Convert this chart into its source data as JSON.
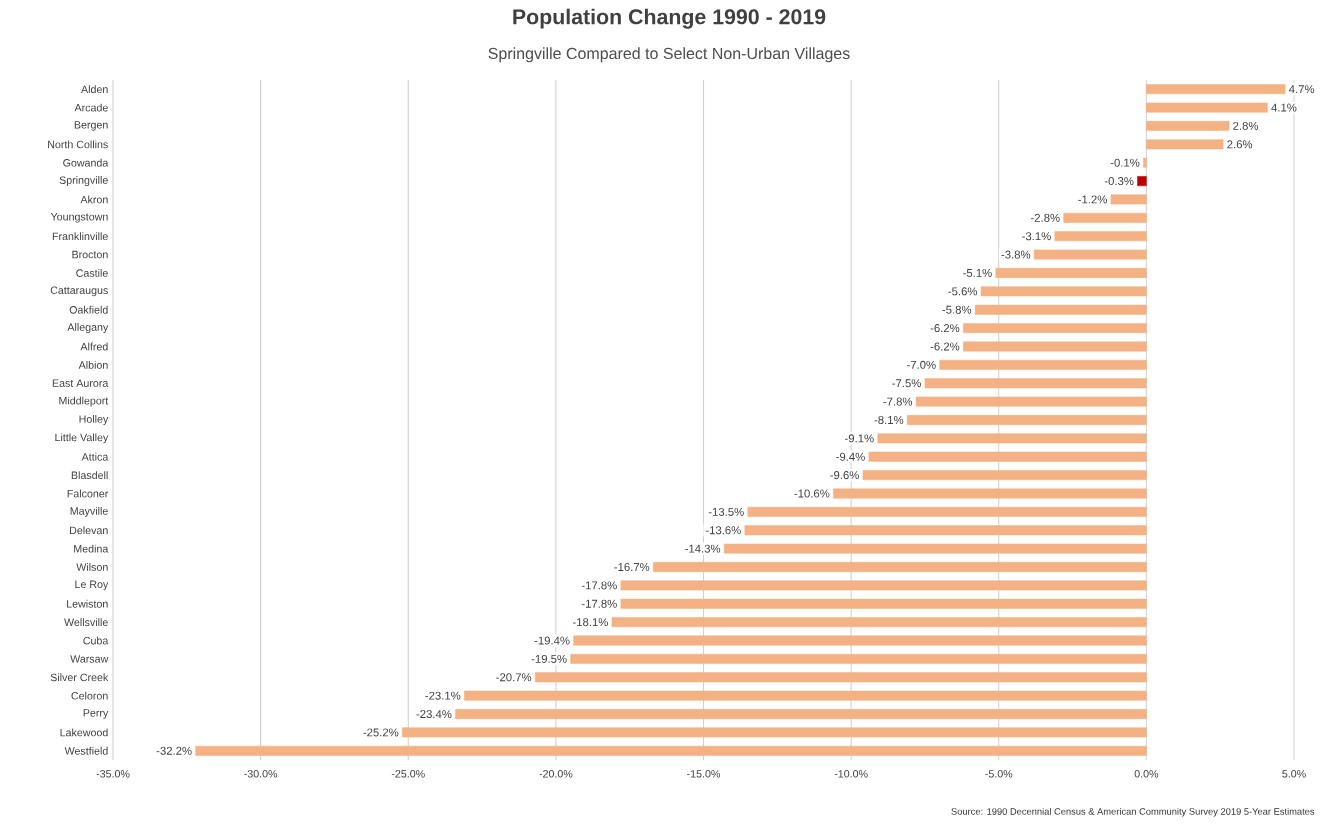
{
  "chart_data": {
    "type": "bar",
    "orientation": "horizontal",
    "title": "Population Change 1990 - 2019",
    "subtitle": "Springville Compared to Select Non-Urban Villages",
    "categories": [
      "Alden",
      "Arcade",
      "Bergen",
      "North Collins",
      "Gowanda",
      "Springville",
      "Akron",
      "Youngstown",
      "Franklinville",
      "Brocton",
      "Castile",
      "Cattaraugus",
      "Oakfield",
      "Allegany",
      "Alfred",
      "Albion",
      "East Aurora",
      "Middleport",
      "Holley",
      "Little Valley",
      "Attica",
      "Blasdell",
      "Falconer",
      "Mayville",
      "Delevan",
      "Medina",
      "Wilson",
      "Le Roy",
      "Lewiston",
      "Wellsville",
      "Cuba",
      "Warsaw",
      "Silver Creek",
      "Celoron",
      "Perry",
      "Lakewood",
      "Westfield"
    ],
    "values": [
      4.7,
      4.1,
      2.8,
      2.6,
      -0.1,
      -0.3,
      -1.2,
      -2.8,
      -3.1,
      -3.8,
      -5.1,
      -5.6,
      -5.8,
      -6.2,
      -6.2,
      -7.0,
      -7.5,
      -7.8,
      -8.1,
      -9.1,
      -9.4,
      -9.6,
      -10.6,
      -13.5,
      -13.6,
      -14.3,
      -16.7,
      -17.8,
      -17.8,
      -18.1,
      -19.4,
      -19.5,
      -20.7,
      -23.1,
      -23.4,
      -25.2,
      -32.2
    ],
    "value_labels": [
      "4.7%",
      "4.1%",
      "2.8%",
      "2.6%",
      "-0.1%",
      "-0.3%",
      "-1.2%",
      "-2.8%",
      "-3.1%",
      "-3.8%",
      "-5.1%",
      "-5.6%",
      "-5.8%",
      "-6.2%",
      "-6.2%",
      "-7.0%",
      "-7.5%",
      "-7.8%",
      "-8.1%",
      "-9.1%",
      "-9.4%",
      "-9.6%",
      "-10.6%",
      "-13.5%",
      "-13.6%",
      "-14.3%",
      "-16.7%",
      "-17.8%",
      "-17.8%",
      "-18.1%",
      "-19.4%",
      "-19.5%",
      "-20.7%",
      "-23.1%",
      "-23.4%",
      "-25.2%",
      "-32.2%"
    ],
    "colors": [
      "#f4b183",
      "#f4b183",
      "#f4b183",
      "#f4b183",
      "#f4b183",
      "#c00000",
      "#f4b183",
      "#f4b183",
      "#f4b183",
      "#f4b183",
      "#f4b183",
      "#f4b183",
      "#f4b183",
      "#f4b183",
      "#f4b183",
      "#f4b183",
      "#f4b183",
      "#f4b183",
      "#f4b183",
      "#f4b183",
      "#f4b183",
      "#f4b183",
      "#f4b183",
      "#f4b183",
      "#f4b183",
      "#f4b183",
      "#f4b183",
      "#f4b183",
      "#f4b183",
      "#f4b183",
      "#f4b183",
      "#f4b183",
      "#f4b183",
      "#f4b183",
      "#f4b183",
      "#f4b183",
      "#f4b183"
    ],
    "xlim": [
      -35,
      5
    ],
    "xticks": [
      {
        "value": -35,
        "label": "-35.0%"
      },
      {
        "value": -30,
        "label": "-30.0%"
      },
      {
        "value": -25,
        "label": "-25.0%"
      },
      {
        "value": -20,
        "label": "-20.0%"
      },
      {
        "value": -15,
        "label": "-15.0%"
      },
      {
        "value": -10,
        "label": "-10.0%"
      },
      {
        "value": -5,
        "label": "-5.0%"
      },
      {
        "value": 0,
        "label": "0.0%"
      },
      {
        "value": 5,
        "label": "5.0%"
      }
    ],
    "grid": "x",
    "annotations": [
      "Source: 1990 Decennial Census & American Community Survey 2019 5-Year Estimates"
    ]
  }
}
